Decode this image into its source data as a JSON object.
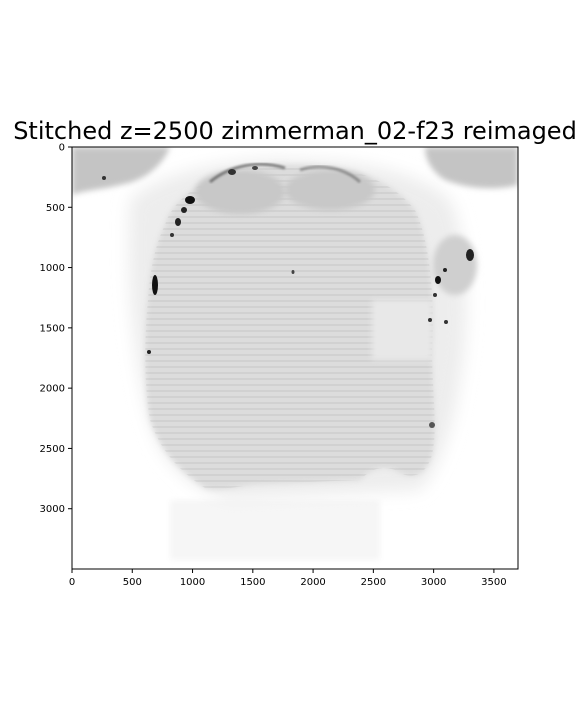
{
  "title": "Stitched z=2500 zimmerman_02-f23 reimaged",
  "image": {
    "colormap": "gray_r",
    "content": "stitched grayscale microscopy section"
  },
  "axes": {
    "x_range": [
      0,
      3700
    ],
    "y_range": [
      0,
      3500
    ],
    "y_inverted": true,
    "x_ticks": [
      0,
      500,
      1000,
      1500,
      2000,
      2500,
      3000,
      3500
    ],
    "y_ticks": [
      0,
      500,
      1000,
      1500,
      2000,
      2500,
      3000
    ],
    "x_tick_labels": [
      "0",
      "500",
      "1000",
      "1500",
      "2000",
      "2500",
      "3000",
      "3500"
    ],
    "y_tick_labels": [
      "0",
      "500",
      "1000",
      "1500",
      "2000",
      "2500",
      "3000"
    ]
  }
}
